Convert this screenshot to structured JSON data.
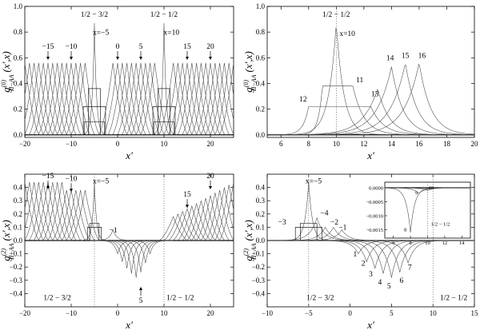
{
  "chart_data": [
    {
      "id": "a",
      "type": "line",
      "title": "",
      "xlabel": "x'",
      "ylabel": "g^(0)_{II-AA}(x',x)",
      "ylabel_main": "g",
      "ylabel_sup": "(0)",
      "ylabel_sub": "II−AA",
      "ylabel_args": "(x',x)",
      "xlim": [
        -20,
        25
      ],
      "ylim": [
        -0.02,
        1.0
      ],
      "xticks": [
        -20,
        -10,
        0,
        10,
        20
      ],
      "yticks": [
        0.0,
        0.2,
        0.4,
        0.6,
        0.8,
        1.0
      ],
      "xtick_labels": [
        "−20",
        "−10",
        "0",
        "10",
        "20"
      ],
      "ytick_labels": [
        "0.0",
        "0.2",
        "0.4",
        "0.6",
        "0.8",
        "1.0"
      ],
      "series_x_positions": [
        -20,
        -19,
        -18,
        -17,
        -16,
        -15,
        -14,
        -13,
        -12,
        -11,
        -10,
        -9,
        -8,
        -7,
        -1,
        0,
        1,
        2,
        3,
        4,
        5,
        6,
        7,
        8,
        12,
        13,
        14,
        15,
        16,
        17,
        18,
        19,
        20,
        21,
        22,
        23,
        24,
        25
      ],
      "series_peak": 0.56,
      "special_peaks": [
        {
          "x": -5,
          "peak": 0.87
        },
        {
          "x": 10,
          "peak": 0.87
        }
      ],
      "dotted_x": [],
      "annotations": [
        {
          "text": "1/2 − 3/2",
          "x": -5,
          "y": 0.92
        },
        {
          "text": "1/2 − 1/2",
          "x": 10,
          "y": 0.92
        },
        {
          "text": "x=−5",
          "x": -3.6,
          "y": 0.78
        },
        {
          "text": "x=10",
          "x": 11.6,
          "y": 0.78
        },
        {
          "text": "−15",
          "x": -15,
          "y": 0.67,
          "arrow": true
        },
        {
          "text": "−10",
          "x": -10,
          "y": 0.67,
          "arrow": true
        },
        {
          "text": "0",
          "x": 0,
          "y": 0.67,
          "arrow": true
        },
        {
          "text": "5",
          "x": 5,
          "y": 0.67,
          "arrow": true
        },
        {
          "text": "15",
          "x": 15,
          "y": 0.67,
          "arrow": true
        },
        {
          "text": "20",
          "x": 20,
          "y": 0.67,
          "arrow": true
        }
      ]
    },
    {
      "id": "b",
      "type": "line",
      "title": "",
      "xlabel": "x'",
      "ylabel": "g^(0)_{II-AA}(x',x)",
      "ylabel_main": "g",
      "ylabel_sup": "(0)",
      "ylabel_sub": "II−AA",
      "ylabel_args": "(x',x)",
      "xlim": [
        5,
        20
      ],
      "ylim": [
        -0.02,
        1.0
      ],
      "xticks": [
        6,
        8,
        10,
        12,
        14,
        16,
        18,
        20
      ],
      "yticks": [
        0.0,
        0.2,
        0.4,
        0.6,
        0.8,
        1.0
      ],
      "xtick_labels": [
        "6",
        "8",
        "10",
        "12",
        "14",
        "16",
        "18",
        "20"
      ],
      "ytick_labels": [
        "0.0",
        "0.2",
        "0.4",
        "0.6",
        "0.8",
        "1.0"
      ],
      "series": [
        {
          "name": "10",
          "peak_x": 10,
          "peak": 0.87
        },
        {
          "name": "11",
          "peak_x": 11,
          "peak": 0.38
        },
        {
          "name": "12",
          "peak_x": 12,
          "peak": 0.22
        },
        {
          "name": "13",
          "peak_x": 13,
          "peak": 0.36
        },
        {
          "name": "14",
          "peak_x": 14,
          "peak": 0.53
        },
        {
          "name": "15",
          "peak_x": 15,
          "peak": 0.56
        },
        {
          "name": "16",
          "peak_x": 16,
          "peak": 0.56
        }
      ],
      "dotted_x": [
        10
      ],
      "annotations": [
        {
          "text": "1/2 − 1/2",
          "x": 10,
          "y": 0.92
        },
        {
          "text": "x=10",
          "x": 10.8,
          "y": 0.77
        },
        {
          "text": "11",
          "x": 11.7,
          "y": 0.41
        },
        {
          "text": "12",
          "x": 7.6,
          "y": 0.26
        },
        {
          "text": "13",
          "x": 12.8,
          "y": 0.3
        },
        {
          "text": "14",
          "x": 13.9,
          "y": 0.58
        },
        {
          "text": "15",
          "x": 15.0,
          "y": 0.6
        },
        {
          "text": "16",
          "x": 16.2,
          "y": 0.6
        }
      ]
    },
    {
      "id": "c",
      "type": "line",
      "title": "",
      "xlabel": "x'",
      "ylabel": "g^(2)_{II-AA}(x',x)",
      "ylabel_main": "g",
      "ylabel_sup": "(2)",
      "ylabel_sub": "II−AA",
      "ylabel_args": "(x',x)",
      "xlim": [
        -20,
        25
      ],
      "ylim": [
        -0.5,
        0.5
      ],
      "xticks": [
        -20,
        -10,
        0,
        10,
        20
      ],
      "yticks": [
        -0.4,
        -0.3,
        -0.2,
        -0.1,
        0.0,
        0.1,
        0.2,
        0.3,
        0.4
      ],
      "xtick_labels": [
        "−20",
        "−10",
        "0",
        "10",
        "20"
      ],
      "ytick_labels": [
        "−0.4",
        "−0.3",
        "−0.2",
        "−0.1",
        "0.0",
        "0.1",
        "0.2",
        "0.3",
        "0.4"
      ],
      "dotted_x": [
        -5,
        10
      ],
      "annotations": [
        {
          "text": "−15",
          "x": -15,
          "y": 0.47,
          "arrow": true
        },
        {
          "text": "−10",
          "x": -10,
          "y": 0.45,
          "arrow": true
        },
        {
          "text": "x=−5",
          "x": -3.6,
          "y": 0.43
        },
        {
          "text": "−1",
          "x": -0.9,
          "y": 0.06
        },
        {
          "text": "15",
          "x": 15,
          "y": 0.33,
          "arrow": true
        },
        {
          "text": "20",
          "x": 20,
          "y": 0.47,
          "arrow": true
        },
        {
          "text": "5",
          "x": 5,
          "y": -0.47,
          "arrow_up": true
        },
        {
          "text": "1/2 − 3/2",
          "x": -13,
          "y": -0.45
        },
        {
          "text": "1/2 − 1/2",
          "x": 13.5,
          "y": -0.45
        }
      ]
    },
    {
      "id": "d",
      "type": "line",
      "title": "",
      "xlabel": "x'",
      "ylabel": "g^(2)_{II-AA}(x',x)",
      "ylabel_main": "g",
      "ylabel_sup": "(2)",
      "ylabel_sub": "II−AA",
      "ylabel_args": "(x',x)",
      "xlim": [
        -10,
        15
      ],
      "ylim": [
        -0.5,
        0.5
      ],
      "xticks": [
        -10,
        -5,
        0,
        5,
        10,
        15
      ],
      "yticks": [
        -0.4,
        -0.3,
        -0.2,
        -0.1,
        0.0,
        0.1,
        0.2,
        0.3,
        0.4
      ],
      "xtick_labels": [
        "−10",
        "−5",
        "0",
        "5",
        "10",
        "15"
      ],
      "ytick_labels": [
        "−0.4",
        "−0.3",
        "−0.2",
        "−0.1",
        "0.0",
        "0.1",
        "0.2",
        "0.3",
        "0.4"
      ],
      "series": [
        {
          "name": "x=−5",
          "peak_x": -5,
          "peak": 0.44
        },
        {
          "name": "−4",
          "peak_x": -4,
          "peak": 0.17
        },
        {
          "name": "−3",
          "peak_x": -3,
          "peak": 0.1
        },
        {
          "name": "−2",
          "peak_x": -2,
          "peak": 0.1
        },
        {
          "name": "−1",
          "peak_x": -1,
          "peak": 0.08
        },
        {
          "name": "1",
          "peak_x": 1,
          "peak": -0.1
        },
        {
          "name": "2",
          "peak_x": 2,
          "peak": -0.16
        },
        {
          "name": "3",
          "peak_x": 3,
          "peak": -0.21
        },
        {
          "name": "4",
          "peak_x": 4,
          "peak": -0.25
        },
        {
          "name": "5",
          "peak_x": 5,
          "peak": -0.28
        },
        {
          "name": "6",
          "peak_x": 6,
          "peak": -0.24
        },
        {
          "name": "7",
          "peak_x": 7,
          "peak": -0.17
        }
      ],
      "dotted_x": [
        -5,
        10
      ],
      "annotations": [
        {
          "text": "x=−5",
          "x": -4.4,
          "y": 0.43
        },
        {
          "text": "−4",
          "x": -3.1,
          "y": 0.19
        },
        {
          "text": "−3",
          "x": -8.2,
          "y": 0.12
        },
        {
          "text": "−2",
          "x": -1.9,
          "y": 0.12
        },
        {
          "text": "−1",
          "x": -0.9,
          "y": 0.08
        },
        {
          "text": "1",
          "x": 0.6,
          "y": -0.12
        },
        {
          "text": "2",
          "x": 1.6,
          "y": -0.19
        },
        {
          "text": "3",
          "x": 2.5,
          "y": -0.27
        },
        {
          "text": "4",
          "x": 3.6,
          "y": -0.33
        },
        {
          "text": "5",
          "x": 4.7,
          "y": -0.36
        },
        {
          "text": "6",
          "x": 6.2,
          "y": -0.32
        },
        {
          "text": "7",
          "x": 7.2,
          "y": -0.22
        },
        {
          "text": "1/2 − 3/2",
          "x": -3.6,
          "y": -0.45
        },
        {
          "text": "1/2 − 1/2",
          "x": 12.5,
          "y": -0.45
        }
      ],
      "inset": {
        "xlim": [
          5,
          15
        ],
        "ylim": [
          -0.0018,
          0.0002
        ],
        "xticks": [
          6,
          8,
          10,
          12,
          14
        ],
        "yticks": [
          0.0,
          -0.0005,
          -0.001,
          -0.0015
        ],
        "xtick_labels": [
          "6",
          "8",
          "10",
          "12",
          "14"
        ],
        "ytick_labels": [
          "0.0000",
          "−0.0005",
          "−0.0010",
          "−0.0015"
        ],
        "series": [
          {
            "name": "8",
            "peak_x": 8,
            "peak": -0.0016
          },
          {
            "name": "9",
            "peak_x": 9,
            "peak": -0.0002
          },
          {
            "name": "10",
            "peak_x": 10,
            "peak": -0.0001
          }
        ],
        "dotted_x": [
          10
        ],
        "annotations": [
          {
            "text": "8",
            "x": 7.4,
            "y": -0.00155
          },
          {
            "text": "9",
            "x": 8.7,
            "y": -0.00024
          },
          {
            "text": "10",
            "x": 10.4,
            "y": -6e-05
          },
          {
            "text": "1/2 − 1/2",
            "x": 11.5,
            "y": -0.00135
          }
        ]
      }
    }
  ]
}
